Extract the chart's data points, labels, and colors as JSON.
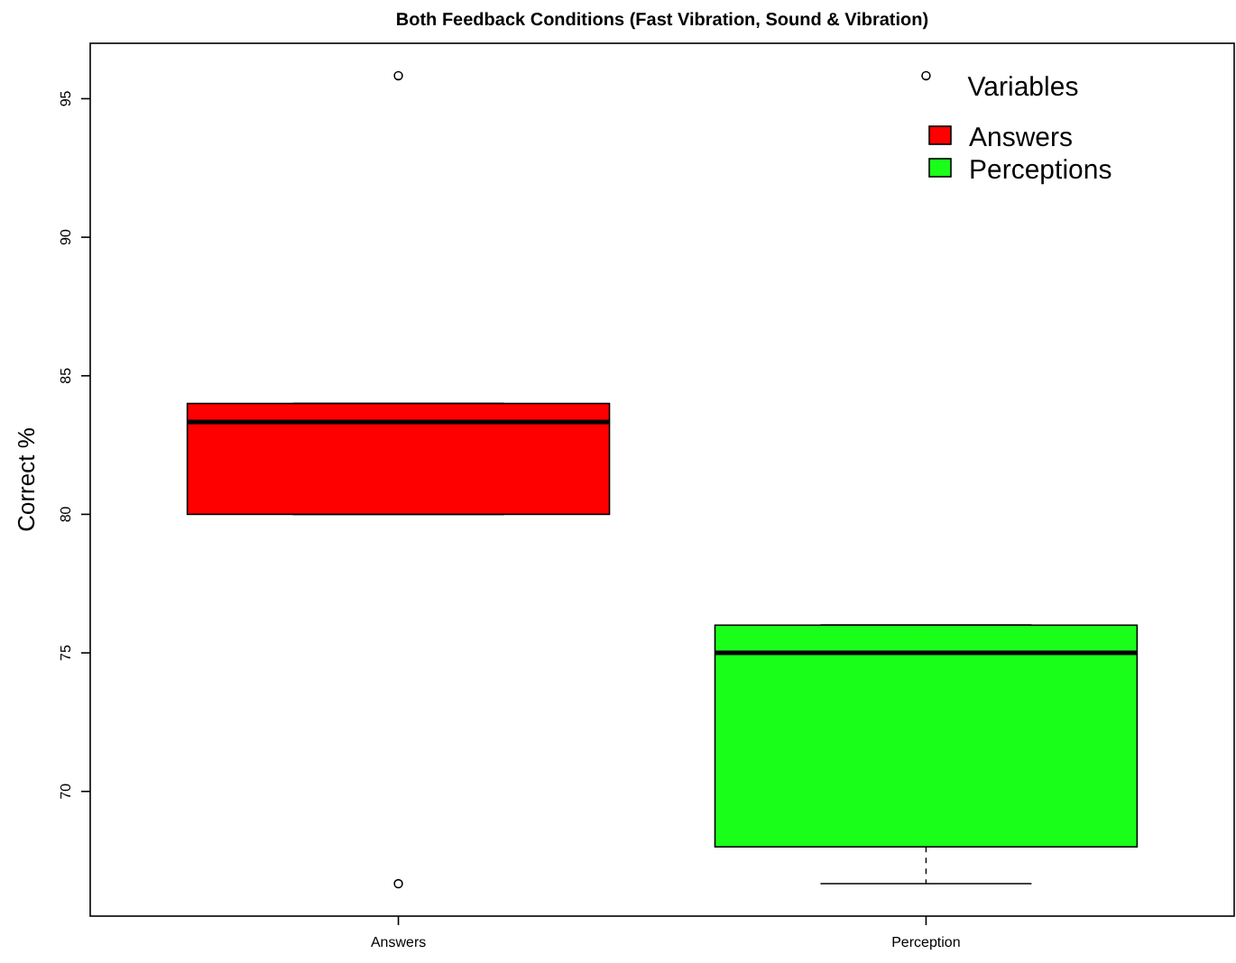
{
  "chart_data": {
    "type": "box",
    "title": "Both Feedback Conditions (Fast Vibration, Sound & Vibration)",
    "ylabel": "Correct %",
    "legend_title": "Variables",
    "categories": [
      "Answers",
      "Perception"
    ],
    "series": [
      {
        "name": "Answers",
        "color": "#ff0000",
        "boxes": [
          {
            "low": 80,
            "q1": 80,
            "median": 83.33,
            "q3": 84,
            "high": 84,
            "outliers": [
              95.83,
              66.67
            ]
          },
          null
        ]
      },
      {
        "name": "Perceptions",
        "color": "#1aff1a",
        "boxes": [
          null,
          {
            "low": 66.67,
            "q1": 68,
            "median": 75,
            "q3": 76,
            "high": 76,
            "outliers": [
              95.83
            ]
          }
        ]
      }
    ],
    "ylim": [
      65.5,
      97
    ],
    "yticks": [
      70,
      75,
      80,
      85,
      90,
      95
    ],
    "grid": false,
    "legend": "top right"
  }
}
